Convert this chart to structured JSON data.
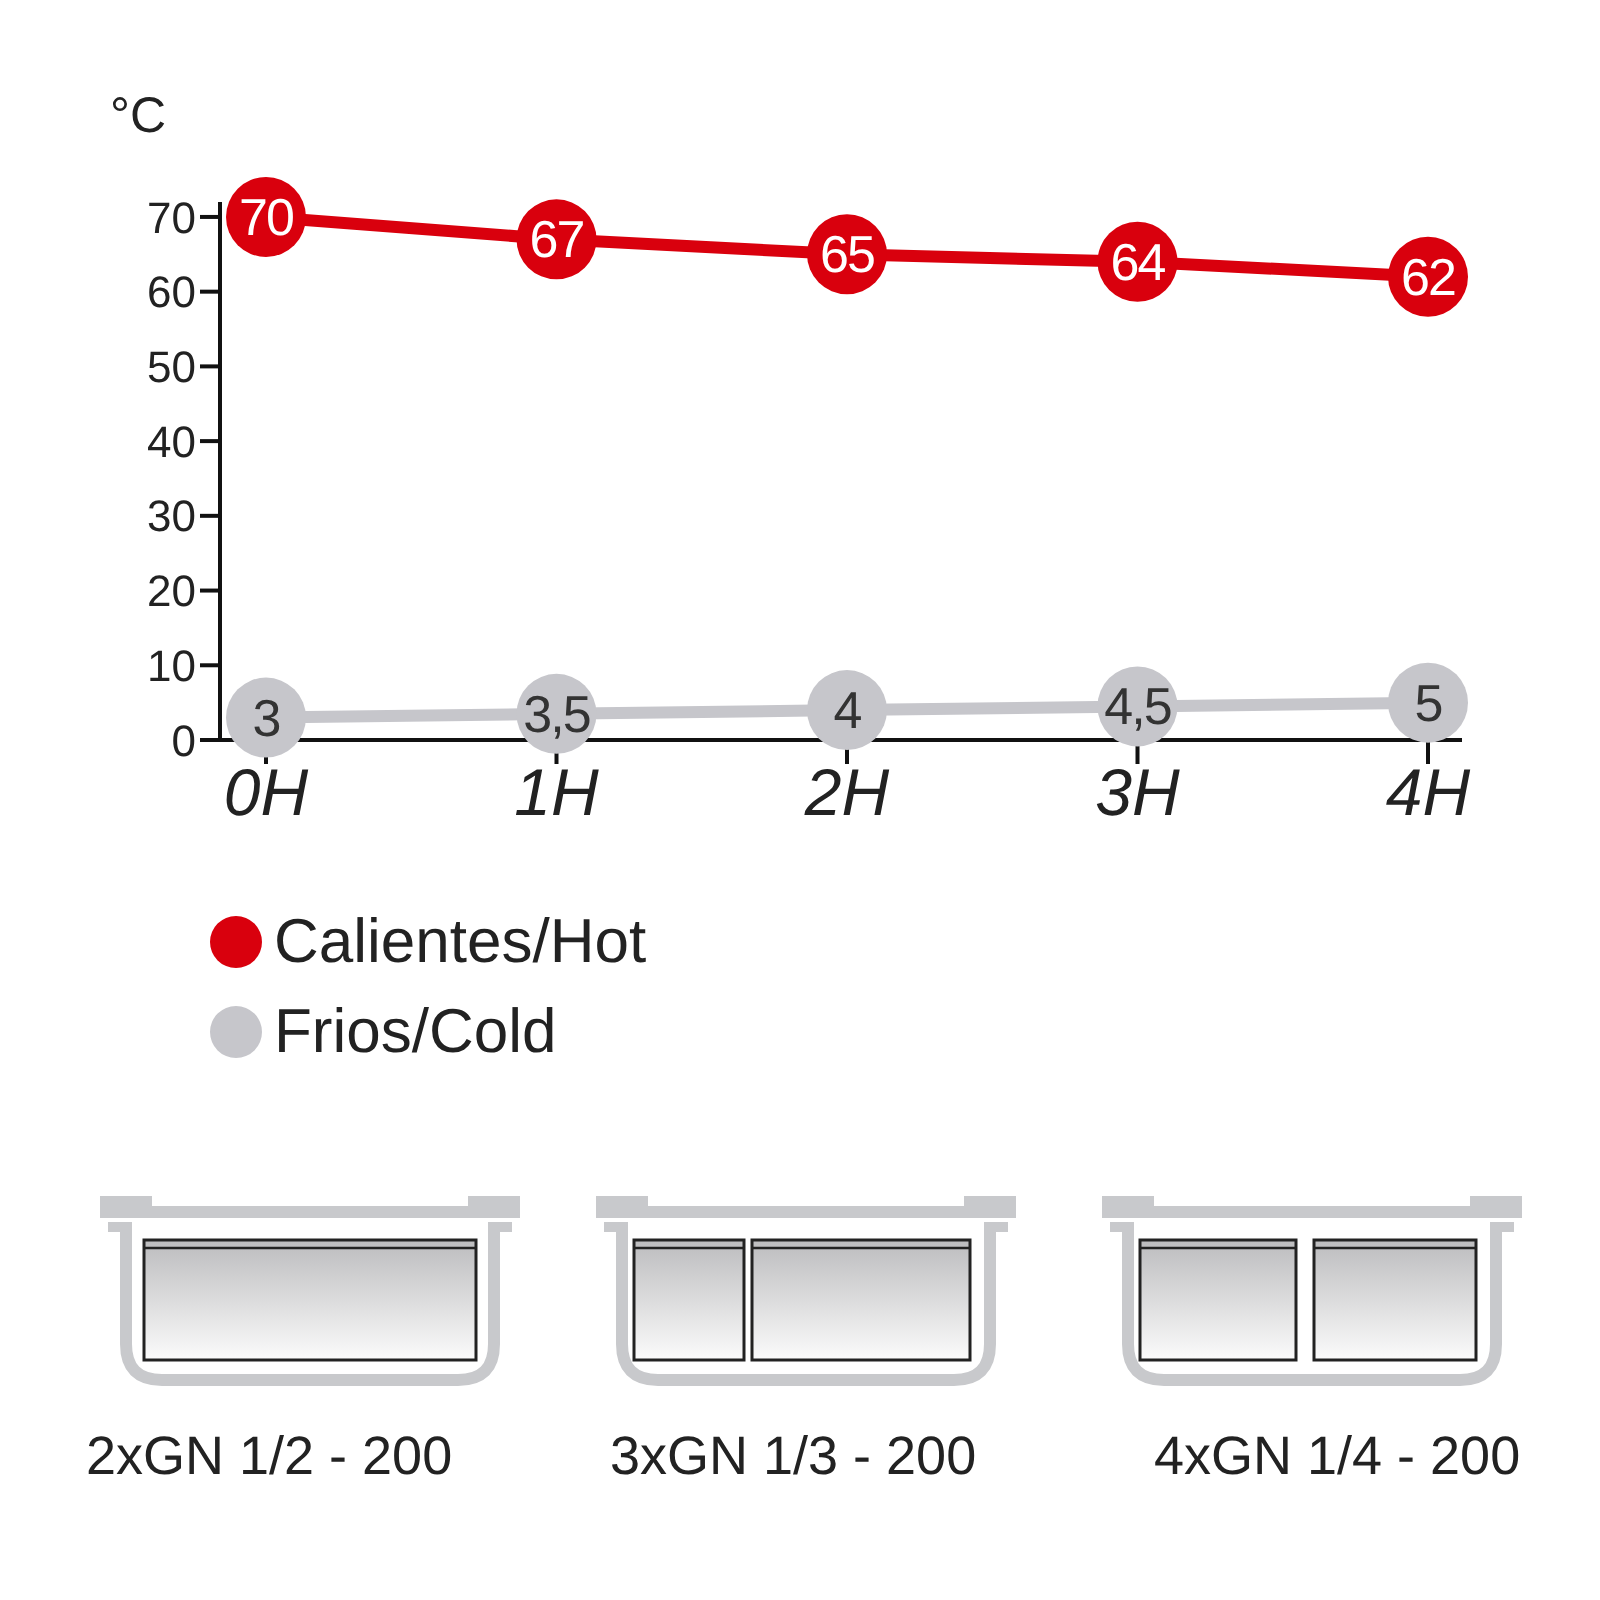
{
  "chart_data": {
    "type": "line",
    "ylabel": "°C",
    "categories": [
      "0H",
      "1H",
      "2H",
      "3H",
      "4H"
    ],
    "series": [
      {
        "name": "Calientes/Hot",
        "color": "#d9000d",
        "values": [
          70,
          67,
          65,
          64,
          62
        ],
        "value_labels": [
          "70",
          "67",
          "65",
          "64",
          "62"
        ]
      },
      {
        "name": "Frios/Cold",
        "color": "#c6c6cb",
        "values": [
          3,
          3.5,
          4,
          4.5,
          5
        ],
        "value_labels": [
          "3",
          "3,5",
          "4",
          "4,5",
          "5"
        ]
      }
    ],
    "ylim": [
      0,
      72
    ],
    "yticks": [
      0,
      10,
      20,
      30,
      40,
      50,
      60,
      70
    ],
    "legend": "bottom",
    "marker": "circle",
    "annotations": [
      "2xGN 1/2 - 200",
      "3xGN 1/3 - 200",
      "4xGN 1/4 - 200"
    ]
  }
}
